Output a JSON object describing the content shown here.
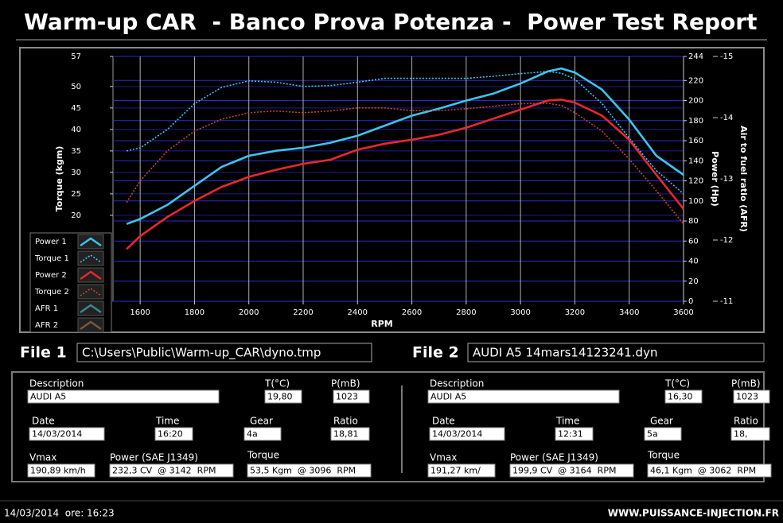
{
  "header": {
    "title": "Warm-up CAR  - Banco Prova Potenza -  Power Test Report"
  },
  "chart_data": {
    "type": "line",
    "xlabel": "RPM",
    "ylabel": "Torque (kgm)",
    "y2label": "Power (Hp)",
    "y3label": "Air to fuel ratio (AFR)",
    "x": [
      1550,
      1600,
      1700,
      1800,
      1900,
      2000,
      2100,
      2200,
      2300,
      2400,
      2500,
      2600,
      2700,
      2800,
      2900,
      3000,
      3100,
      3150,
      3200,
      3300,
      3400,
      3500,
      3600
    ],
    "xlim": [
      1500,
      3600
    ],
    "xticks": [
      1600,
      1800,
      2000,
      2200,
      2400,
      2600,
      2800,
      3000,
      3200,
      3400,
      3600
    ],
    "ylim": [
      0,
      57
    ],
    "yticks": [
      20,
      25,
      30,
      35,
      40,
      45,
      50,
      57
    ],
    "y2lim": [
      0,
      244
    ],
    "y2ticks": [
      0,
      20,
      40,
      60,
      80,
      100,
      120,
      140,
      160,
      180,
      200,
      220,
      244
    ],
    "y3lim": [
      -11,
      -15
    ],
    "y3ticks": [
      -11,
      -12,
      -13,
      -14,
      -15
    ],
    "grid": true,
    "legend": "lower left",
    "series": [
      {
        "name": "Power 1",
        "color": "#3fc3f0",
        "style": "solid",
        "axis": "y2",
        "values": [
          77,
          82,
          96,
          115,
          134,
          145,
          150,
          153,
          158,
          165,
          175,
          185,
          192,
          200,
          207,
          217,
          229,
          232,
          228,
          211,
          181,
          145,
          126
        ]
      },
      {
        "name": "Torque 1",
        "color": "#3fc3f0",
        "style": "dotted",
        "values": [
          35,
          35.7,
          40,
          46,
          49.8,
          51.3,
          51,
          50,
          50.2,
          51,
          51.9,
          51.9,
          51.9,
          51.9,
          52.4,
          53,
          53.5,
          53.1,
          51.7,
          46,
          38,
          30.4,
          25
        ]
      },
      {
        "name": "Power 2",
        "color": "#e8282a",
        "style": "solid",
        "axis": "y2",
        "values": [
          52,
          65,
          84,
          100,
          114,
          124,
          131,
          137,
          141,
          151,
          157,
          161,
          166,
          173,
          182,
          191,
          200,
          201,
          198,
          185,
          161,
          126,
          92
        ]
      },
      {
        "name": "Torque 2",
        "color": "#c8462a",
        "style": "dotted",
        "values": [
          23,
          28,
          35,
          39.6,
          42.4,
          43.9,
          44.3,
          43.9,
          44.3,
          45,
          45,
          44.4,
          44.4,
          44.8,
          45.4,
          46,
          46.1,
          45.6,
          43.9,
          39.6,
          33.1,
          25.7,
          18
        ]
      },
      {
        "name": "AFR 1",
        "color": "#3a8a90",
        "style": "solid",
        "axis": "y3",
        "values": [
          null,
          null,
          null,
          null,
          null,
          null,
          null,
          null,
          null,
          null,
          null,
          null,
          null,
          null,
          null,
          null,
          null,
          null,
          null,
          null,
          null,
          null,
          null
        ]
      },
      {
        "name": "AFR 2",
        "color": "#7a5a40",
        "style": "solid",
        "axis": "y3",
        "values": [
          null,
          null,
          null,
          null,
          null,
          null,
          null,
          null,
          null,
          null,
          null,
          null,
          null,
          null,
          null,
          null,
          null,
          null,
          null,
          null,
          null,
          null,
          null
        ]
      }
    ]
  },
  "files": [
    {
      "label": "File 1",
      "path": "C:\\Users\\Public\\Warm-up_CAR\\dyno.tmp"
    },
    {
      "label": "File 2",
      "path": "AUDI A5 14mars14123241.dyn"
    }
  ],
  "panels": [
    {
      "fields": [
        {
          "label": "Description",
          "value": "AUDI A5"
        },
        {
          "label": "T(°C)",
          "value": "19,80"
        },
        {
          "label": "P(mB)",
          "value": "1023"
        },
        {
          "label": "Date",
          "value": "14/03/2014"
        },
        {
          "label": "Time",
          "value": "16:20"
        },
        {
          "label": "Gear",
          "value": "4a"
        },
        {
          "label": "Ratio",
          "value": "18,81"
        },
        {
          "label": "Vmax",
          "value": "190,89 km/h"
        },
        {
          "label": "Power (SAE J1349)",
          "value": "232,3 CV  @ 3142  RPM"
        },
        {
          "label": "Torque",
          "value": "53,5 Kgm  @ 3096  RPM"
        }
      ]
    },
    {
      "fields": [
        {
          "label": "Description",
          "value": "AUDI A5"
        },
        {
          "label": "T(°C)",
          "value": "16,30"
        },
        {
          "label": "P(mB)",
          "value": "1023"
        },
        {
          "label": "Date",
          "value": "14/03/2014"
        },
        {
          "label": "Time",
          "value": "12:31"
        },
        {
          "label": "Gear",
          "value": "5a"
        },
        {
          "label": "Ratio",
          "value": "18,"
        },
        {
          "label": "Vmax",
          "value": "191,27 km/"
        },
        {
          "label": "Power (SAE J1349)",
          "value": "199,9 CV  @ 3164  RPM"
        },
        {
          "label": "Torque",
          "value": "46,1 Kgm  @ 3062  RPM"
        }
      ]
    }
  ],
  "footer": {
    "date": "14/03/2014  ore: 16:23",
    "url": "WWW.PUISSANCE-INJECTION.FR"
  }
}
